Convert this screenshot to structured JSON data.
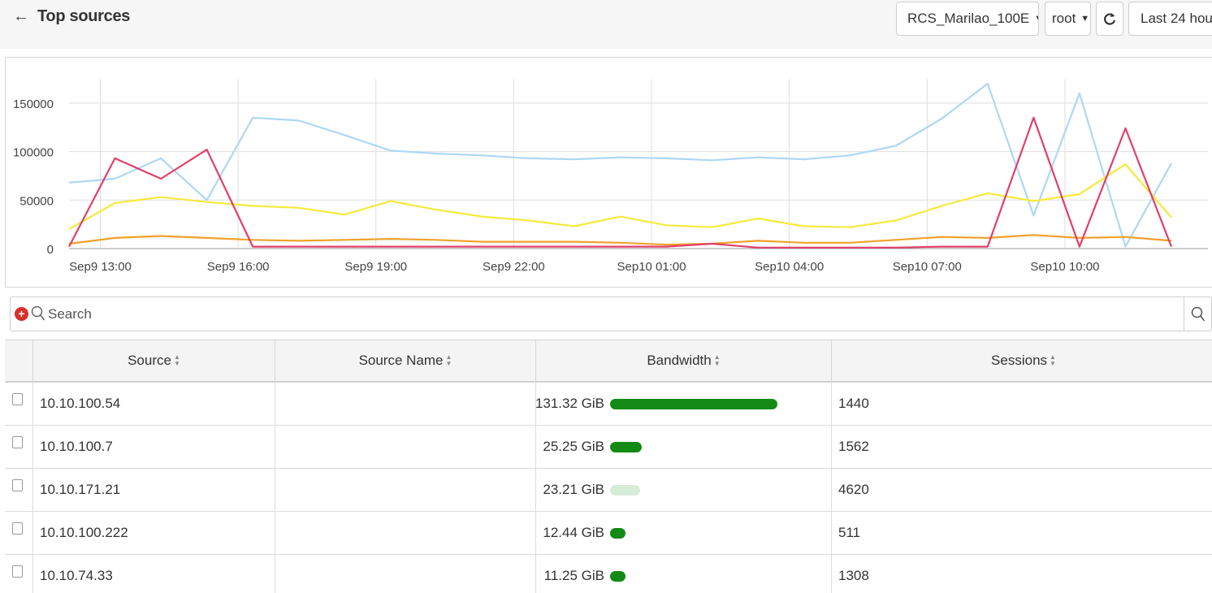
{
  "header": {
    "back_icon": "arrow-left-icon",
    "title": "Top sources",
    "device_icon": "device-icon",
    "device_label": "RCS_Marilao_100E",
    "user_label": "root",
    "refresh_icon": "refresh-icon",
    "calendar_icon": "calendar-icon",
    "range_label": "Last 24 hou"
  },
  "chart_data": {
    "type": "line",
    "x_tick_labels": [
      "Sep9 13:00",
      "Sep9 16:00",
      "Sep9 19:00",
      "Sep9 22:00",
      "Sep10 01:00",
      "Sep10 04:00",
      "Sep10 07:00",
      "Sep10 10:00"
    ],
    "y_tick_labels": [
      "150000",
      "100000",
      "50000",
      "0"
    ],
    "ylim": [
      0,
      175000
    ],
    "grid": true,
    "series": [
      {
        "color": "#aed7f5",
        "values": [
          68000,
          72000,
          93000,
          50000,
          135000,
          132000,
          117000,
          101000,
          98000,
          96000,
          93000,
          92000,
          94000,
          93000,
          91000,
          94000,
          92000,
          96000,
          106000,
          134000,
          170000,
          34000,
          160000,
          2000,
          88000
        ]
      },
      {
        "color": "#f5ea3b",
        "values": [
          20000,
          47000,
          53000,
          48000,
          44000,
          42000,
          35000,
          49000,
          40000,
          33000,
          29000,
          23000,
          33000,
          24000,
          22000,
          31000,
          23000,
          22000,
          29000,
          44000,
          57000,
          49000,
          56000,
          87000,
          32000
        ]
      },
      {
        "color": "#f0a12a",
        "values": [
          5000,
          11000,
          13000,
          11000,
          9000,
          8000,
          9000,
          10000,
          9000,
          7000,
          7000,
          7000,
          6000,
          4000,
          5000,
          8000,
          6000,
          6000,
          9000,
          12000,
          11000,
          14000,
          11000,
          12000,
          8000
        ]
      },
      {
        "color": "#e04068",
        "values": [
          2000,
          93000,
          72000,
          102000,
          2000,
          2000,
          2000,
          2000,
          2000,
          2000,
          2000,
          2000,
          2000,
          2000,
          5000,
          1000,
          1000,
          1000,
          1000,
          2000,
          2000,
          135000,
          2000,
          124000,
          2000
        ]
      }
    ]
  },
  "search": {
    "add_icon": "add-filter-icon",
    "placeholder": "Search",
    "search_icon": "search-icon"
  },
  "table": {
    "columns": [
      "Source",
      "Source Name",
      "Bandwidth",
      "Sessions"
    ],
    "rows": [
      {
        "source": "10.10.100.54",
        "source_name": "",
        "bandwidth": "131.32 GiB",
        "bar_fraction": 1.0,
        "bar_color": "#138a13",
        "sessions": "1440"
      },
      {
        "source": "10.10.100.7",
        "source_name": "",
        "bandwidth": "25.25 GiB",
        "bar_fraction": 0.19,
        "bar_color": "#138a13",
        "sessions": "1562"
      },
      {
        "source": "10.10.171.21",
        "source_name": "",
        "bandwidth": "23.21 GiB",
        "bar_fraction": 0.18,
        "bar_color": "#d6ecd6",
        "sessions": "4620"
      },
      {
        "source": "10.10.100.222",
        "source_name": "",
        "bandwidth": "12.44 GiB",
        "bar_fraction": 0.09,
        "bar_color": "#138a13",
        "sessions": "511"
      },
      {
        "source": "10.10.74.33",
        "source_name": "",
        "bandwidth": "11.25 GiB",
        "bar_fraction": 0.09,
        "bar_color": "#138a13",
        "sessions": "1308"
      }
    ]
  }
}
